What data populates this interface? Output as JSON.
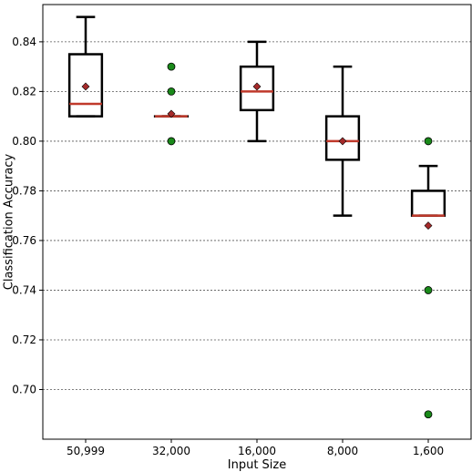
{
  "chart_data": {
    "type": "box",
    "title": "",
    "xlabel": "Input Size",
    "ylabel": "Classification Accuracy",
    "ylim": [
      0.68,
      0.855
    ],
    "yticks": [
      0.7,
      0.72,
      0.74,
      0.76,
      0.78,
      0.8,
      0.82,
      0.84
    ],
    "ytick_labels": [
      "0.70",
      "0.72",
      "0.74",
      "0.76",
      "0.78",
      "0.80",
      "0.82",
      "0.84"
    ],
    "grid": "horizontal-dotted",
    "categories": [
      "50,999",
      "32,000",
      "16,000",
      "8,000",
      "1,600"
    ],
    "boxes": [
      {
        "category": "50,999",
        "whisker_low": 0.81,
        "q1": 0.81,
        "median": 0.815,
        "q3": 0.835,
        "whisker_high": 0.85,
        "mean": 0.822,
        "outliers": []
      },
      {
        "category": "32,000",
        "whisker_low": 0.81,
        "q1": 0.81,
        "median": 0.81,
        "q3": 0.81,
        "whisker_high": 0.81,
        "mean": 0.811,
        "outliers": [
          0.83,
          0.82,
          0.8
        ]
      },
      {
        "category": "16,000",
        "whisker_low": 0.8,
        "q1": 0.8125,
        "median": 0.82,
        "q3": 0.83,
        "whisker_high": 0.84,
        "mean": 0.822,
        "outliers": []
      },
      {
        "category": "8,000",
        "whisker_low": 0.77,
        "q1": 0.7925,
        "median": 0.8,
        "q3": 0.81,
        "whisker_high": 0.83,
        "mean": 0.8,
        "outliers": []
      },
      {
        "category": "1,600",
        "whisker_low": 0.77,
        "q1": 0.77,
        "median": 0.77,
        "q3": 0.78,
        "whisker_high": 0.79,
        "mean": 0.766,
        "outliers": [
          0.8,
          0.74,
          0.69
        ]
      }
    ],
    "colors": {
      "box": "#000000",
      "median": "#c0392b",
      "mean_marker": "#a52a2a",
      "outlier": "#1a8a1a",
      "grid": "#555555"
    }
  }
}
